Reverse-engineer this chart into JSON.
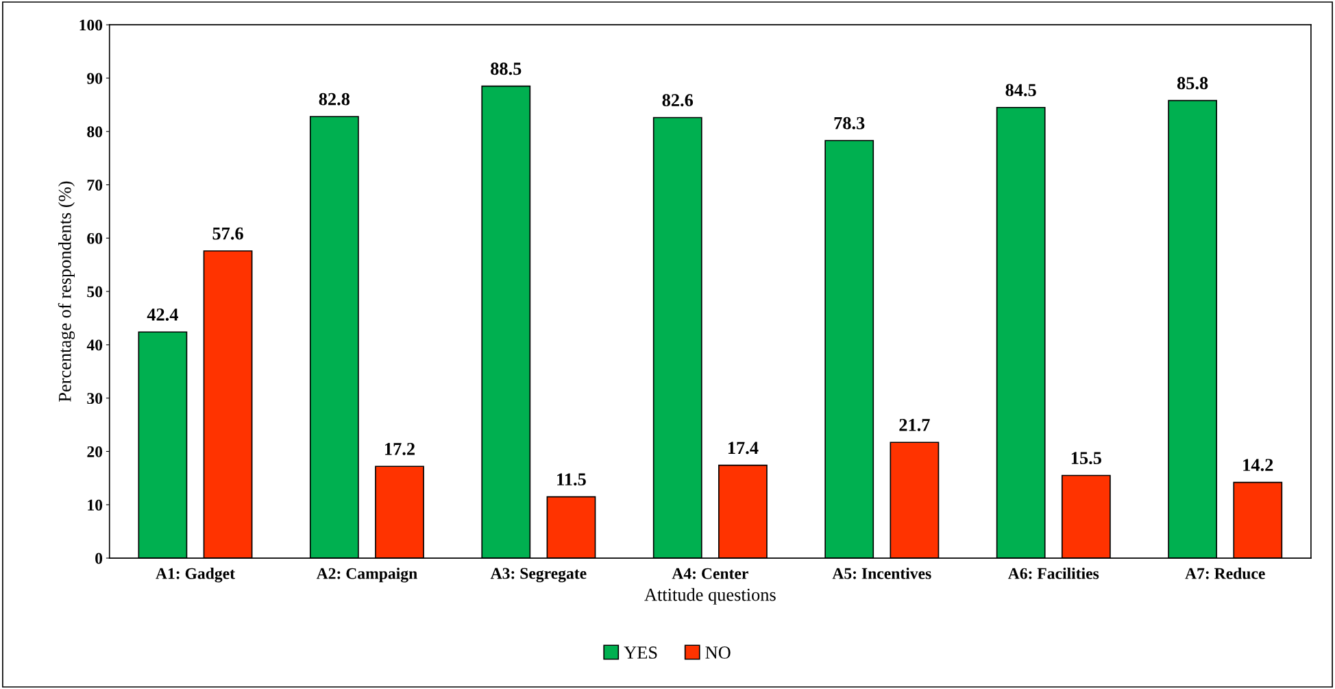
{
  "chart_data": {
    "type": "bar",
    "xlabel": "Attitude questions",
    "ylabel": "Percentage of respondents (%)",
    "categories": [
      "A1: Gadget",
      "A2: Campaign",
      "A3: Segregate",
      "A4: Center",
      "A5: Incentives",
      "A6: Facilities",
      "A7: Reduce"
    ],
    "series": [
      {
        "name": "YES",
        "color": "#00b050",
        "values": [
          42.4,
          82.8,
          88.5,
          82.6,
          78.3,
          84.5,
          85.8
        ]
      },
      {
        "name": "NO",
        "color": "#ff3300",
        "values": [
          57.6,
          17.2,
          11.5,
          17.4,
          21.7,
          15.5,
          14.2
        ]
      }
    ],
    "ylim": [
      0,
      100
    ],
    "yticks": [
      0,
      10,
      20,
      30,
      40,
      50,
      60,
      70,
      80,
      90,
      100
    ],
    "data_labels": true,
    "grid": false,
    "legend": "bottom"
  }
}
